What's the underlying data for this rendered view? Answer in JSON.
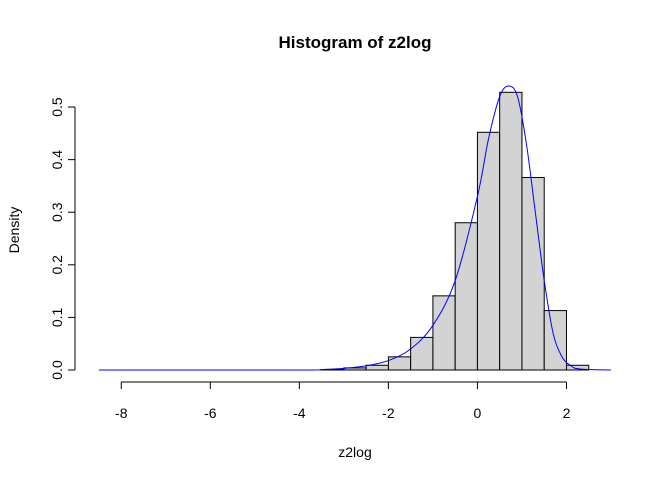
{
  "chart_data": {
    "type": "bar",
    "title": "Histogram of z2log",
    "xlabel": "z2log",
    "ylabel": "Density",
    "xlim": [
      -8.5,
      3.0
    ],
    "ylim": [
      0,
      0.54
    ],
    "x_ticks": [
      -8,
      -6,
      -4,
      -2,
      0,
      2
    ],
    "x_tick_labels": [
      "-8",
      "-6",
      "-4",
      "-2",
      "0",
      "2"
    ],
    "y_ticks": [
      0.0,
      0.1,
      0.2,
      0.3,
      0.4,
      0.5
    ],
    "y_tick_labels": [
      "0.0",
      "0.1",
      "0.2",
      "0.3",
      "0.4",
      "0.5"
    ],
    "bin_edges": [
      -3.5,
      -3.0,
      -2.5,
      -2.0,
      -1.5,
      -1.0,
      -0.5,
      0.0,
      0.5,
      1.0,
      1.5,
      2.0,
      2.5
    ],
    "values": [
      0.001,
      0.004,
      0.009,
      0.025,
      0.062,
      0.141,
      0.28,
      0.452,
      0.528,
      0.366,
      0.113,
      0.009
    ],
    "bar_fill": "#d3d3d3",
    "bar_stroke": "#000000",
    "density_curve": {
      "color": "#0000ff",
      "x": [
        -8.5,
        -4.0,
        -3.5,
        -3.0,
        -2.5,
        -2.0,
        -1.5,
        -1.0,
        -0.5,
        0.0,
        0.25,
        0.5,
        0.7,
        0.9,
        1.1,
        1.3,
        1.5,
        1.7,
        1.9,
        2.1,
        2.3,
        3.0
      ],
      "y": [
        0.0,
        0.0,
        0.001,
        0.003,
        0.008,
        0.018,
        0.04,
        0.085,
        0.17,
        0.33,
        0.44,
        0.52,
        0.54,
        0.52,
        0.43,
        0.3,
        0.17,
        0.07,
        0.025,
        0.008,
        0.002,
        0.0
      ]
    },
    "grid": false
  }
}
